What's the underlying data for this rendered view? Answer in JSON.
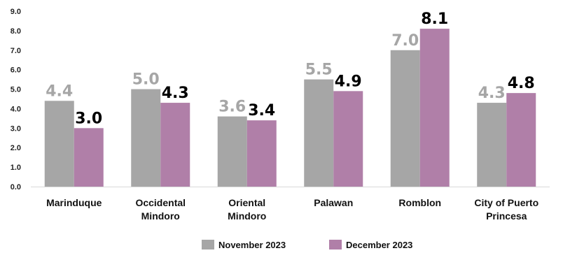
{
  "chart_data": {
    "type": "bar",
    "categories": [
      "Marinduque",
      "Occidental Mindoro",
      "Oriental Mindoro",
      "Palawan",
      "Romblon",
      "City of Puerto Princesa"
    ],
    "series": [
      {
        "name": "November 2023",
        "values": [
          4.4,
          5.0,
          3.6,
          5.5,
          7.0,
          4.3
        ],
        "labels": [
          "4.4",
          "5.0",
          "3.6",
          "5.5",
          "7.0",
          "4.3"
        ],
        "color": "#a6a6a6",
        "label_color": "#a6a6a6"
      },
      {
        "name": "December 2023",
        "values": [
          3.0,
          4.3,
          3.4,
          4.9,
          8.1,
          4.8
        ],
        "labels": [
          "3.0",
          "4.3",
          "3.4",
          "4.9",
          "8.1",
          "4.8"
        ],
        "color": "#b07fa8",
        "label_color": "#000000"
      }
    ],
    "title": "",
    "xlabel": "",
    "ylabel": "",
    "ylim": [
      0,
      9
    ],
    "yticks": [
      "0.0",
      "1.0",
      "2.0",
      "3.0",
      "4.0",
      "5.0",
      "6.0",
      "7.0",
      "8.0",
      "9.0"
    ],
    "grid": false,
    "legend_position": "bottom"
  }
}
